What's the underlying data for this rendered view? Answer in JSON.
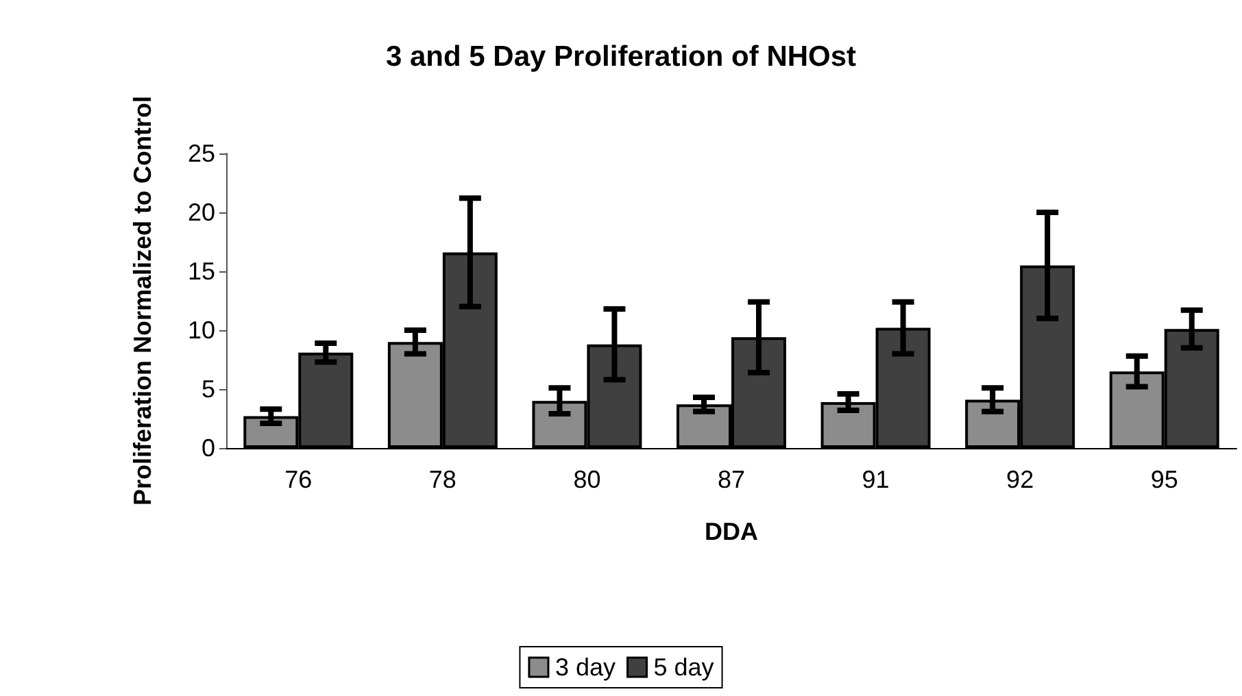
{
  "chart_data": {
    "type": "bar",
    "title": "3 and 5 Day Proliferation of NHOst",
    "xlabel": "DDA",
    "ylabel": "Proliferation Normalized to Control",
    "categories": [
      "76",
      "78",
      "80",
      "87",
      "91",
      "92",
      "95"
    ],
    "series": [
      {
        "name": "3 day",
        "color": "#8c8c8c",
        "values": [
          2.7,
          9.0,
          4.0,
          3.7,
          3.9,
          4.1,
          6.5
        ],
        "errors": [
          0.6,
          1.0,
          1.1,
          0.6,
          0.7,
          1.0,
          1.3
        ]
      },
      {
        "name": "5 day",
        "color": "#404040",
        "values": [
          8.1,
          16.6,
          8.8,
          9.4,
          10.2,
          15.5,
          10.1
        ],
        "errors": [
          0.8,
          4.6,
          3.0,
          3.0,
          2.2,
          4.5,
          1.6
        ]
      }
    ],
    "ylim": [
      0,
      25
    ],
    "yticks": [
      0,
      5,
      10,
      15,
      20,
      25
    ],
    "grid": false,
    "legend": "bottom"
  }
}
